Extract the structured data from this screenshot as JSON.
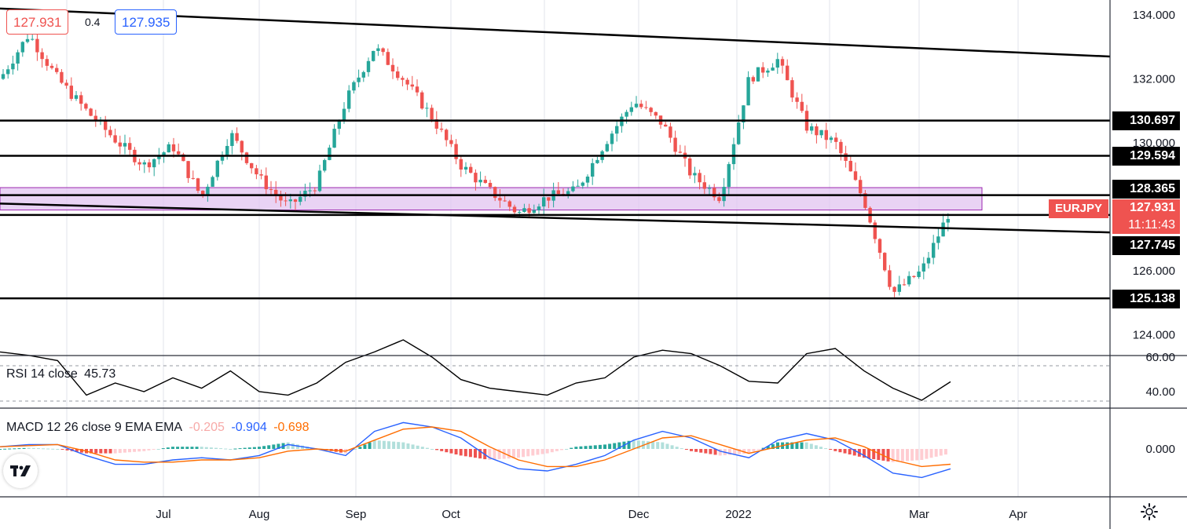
{
  "symbol": "EURJPY",
  "header": {
    "bid": "127.931",
    "spread": "0.4",
    "ask": "127.935"
  },
  "price_axis_ticks": [
    "134.000",
    "132.000",
    "130.000",
    "126.000",
    "124.000"
  ],
  "level_labels": [
    "130.697",
    "129.594",
    "128.365",
    "127.745",
    "125.138"
  ],
  "current": {
    "price": "127.931",
    "countdown": "11:11:43"
  },
  "time_axis_labels": [
    "Jul",
    "Aug",
    "Sep",
    "Oct",
    "Dec",
    "2022",
    "Mar",
    "Apr"
  ],
  "rsi": {
    "legend": "RSI 14 close",
    "value": "45.73",
    "ticks": [
      "60.00",
      "40.00"
    ]
  },
  "macd": {
    "legend": "MACD 12 26 close 9 EMA EMA",
    "histogram": "-0.205",
    "macd": "-0.904",
    "signal": "-0.698",
    "ticks": [
      "0.000"
    ]
  },
  "colors": {
    "up": "#26a69a",
    "down": "#ef5350",
    "zone": "#e1c4f0",
    "macd_line": "#2962ff",
    "signal_line": "#ff6d00",
    "lines": "#000000"
  },
  "icons": [
    "tradingview-logo-icon",
    "gear-icon"
  ],
  "chart_data": {
    "type": "line",
    "title": "",
    "xlabel": "",
    "ylabel": "",
    "ylim": [
      123.2,
      134.6
    ],
    "grid": true,
    "x_labels": [
      "Jul",
      "Aug",
      "Sep",
      "Oct",
      "Dec",
      "2022",
      "Mar",
      "Apr"
    ],
    "horizontal_levels": [
      130.697,
      129.594,
      128.365,
      127.745,
      125.138
    ],
    "zone": [
      127.9,
      128.6
    ],
    "trendlines": [
      {
        "name": "upper",
        "from": [
          "Jun",
          134.2
        ],
        "to": [
          "Apr",
          132.7
        ]
      },
      {
        "name": "lower",
        "from": [
          "Jun",
          128.1
        ],
        "to": [
          "Apr",
          127.2
        ]
      }
    ],
    "price_path": [
      {
        "x": "Jun",
        "close": 132.0
      },
      {
        "x": "Jun",
        "close": 133.4
      },
      {
        "x": "Jun",
        "close": 132.0
      },
      {
        "x": "Jul",
        "close": 131.0
      },
      {
        "x": "Jul",
        "close": 130.1
      },
      {
        "x": "Aug",
        "close": 129.3
      },
      {
        "x": "Aug",
        "close": 129.9
      },
      {
        "x": "Aug",
        "close": 128.3
      },
      {
        "x": "Sep",
        "close": 130.3
      },
      {
        "x": "Sep",
        "close": 128.9
      },
      {
        "x": "Sep",
        "close": 128.0
      },
      {
        "x": "Oct",
        "close": 128.7
      },
      {
        "x": "Oct",
        "close": 131.3
      },
      {
        "x": "Oct",
        "close": 133.0
      },
      {
        "x": "Oct",
        "close": 132.0
      },
      {
        "x": "Nov",
        "close": 130.8
      },
      {
        "x": "Nov",
        "close": 129.3
      },
      {
        "x": "Nov",
        "close": 128.5
      },
      {
        "x": "Dec",
        "close": 127.8
      },
      {
        "x": "Dec",
        "close": 128.3
      },
      {
        "x": "Dec",
        "close": 128.5
      },
      {
        "x": "Jan",
        "close": 130.0
      },
      {
        "x": "Jan",
        "close": 131.3
      },
      {
        "x": "Jan",
        "close": 130.6
      },
      {
        "x": "Jan",
        "close": 129.0
      },
      {
        "x": "Feb",
        "close": 128.3
      },
      {
        "x": "Feb",
        "close": 132.0
      },
      {
        "x": "Feb",
        "close": 132.6
      },
      {
        "x": "Feb",
        "close": 130.5
      },
      {
        "x": "Feb",
        "close": 130.0
      },
      {
        "x": "Mar",
        "close": 128.2
      },
      {
        "x": "Mar",
        "close": 125.3
      },
      {
        "x": "Mar",
        "close": 126.0
      },
      {
        "x": "Mar",
        "close": 127.931
      }
    ],
    "series": [
      {
        "name": "RSI 14 close",
        "ylim": [
          30,
          70
        ],
        "values": [
          63,
          61,
          58,
          38,
          45,
          40,
          48,
          42,
          52,
          40,
          38,
          45,
          57,
          63,
          70,
          60,
          47,
          42,
          40,
          38,
          45,
          48,
          60,
          64,
          62,
          55,
          46,
          45,
          62,
          65,
          52,
          42,
          35,
          45.73
        ]
      },
      {
        "name": "MACD",
        "ylim": [
          -1.6,
          1.6
        ],
        "values": [
          0.1,
          0.2,
          0.2,
          -0.3,
          -0.7,
          -0.7,
          -0.5,
          -0.4,
          -0.5,
          -0.3,
          0.2,
          0.0,
          -0.3,
          0.8,
          1.2,
          1.0,
          0.5,
          -0.4,
          -0.9,
          -1.0,
          -0.7,
          -0.3,
          0.4,
          0.8,
          0.5,
          -0.1,
          -0.4,
          0.4,
          0.7,
          0.4,
          -0.3,
          -1.1,
          -1.3,
          -0.904
        ]
      },
      {
        "name": "Signal",
        "ylim": [
          -1.6,
          1.6
        ],
        "values": [
          0.1,
          0.15,
          0.2,
          -0.1,
          -0.5,
          -0.6,
          -0.6,
          -0.5,
          -0.5,
          -0.4,
          -0.1,
          0.0,
          -0.1,
          0.4,
          0.9,
          1.0,
          0.8,
          0.1,
          -0.5,
          -0.8,
          -0.8,
          -0.5,
          0.0,
          0.5,
          0.6,
          0.2,
          -0.2,
          0.1,
          0.4,
          0.5,
          0.1,
          -0.5,
          -0.8,
          -0.698
        ]
      },
      {
        "name": "Histogram",
        "ylim": [
          -1.6,
          1.6
        ],
        "values": [
          0.0,
          0.05,
          0.0,
          -0.2,
          -0.2,
          -0.1,
          0.1,
          0.1,
          0.0,
          0.1,
          0.3,
          0.0,
          -0.2,
          0.4,
          0.3,
          0.0,
          -0.3,
          -0.5,
          -0.4,
          -0.2,
          0.1,
          0.2,
          0.4,
          0.3,
          -0.1,
          -0.3,
          -0.2,
          0.3,
          0.3,
          -0.1,
          -0.4,
          -0.6,
          -0.5,
          -0.205
        ]
      }
    ]
  }
}
